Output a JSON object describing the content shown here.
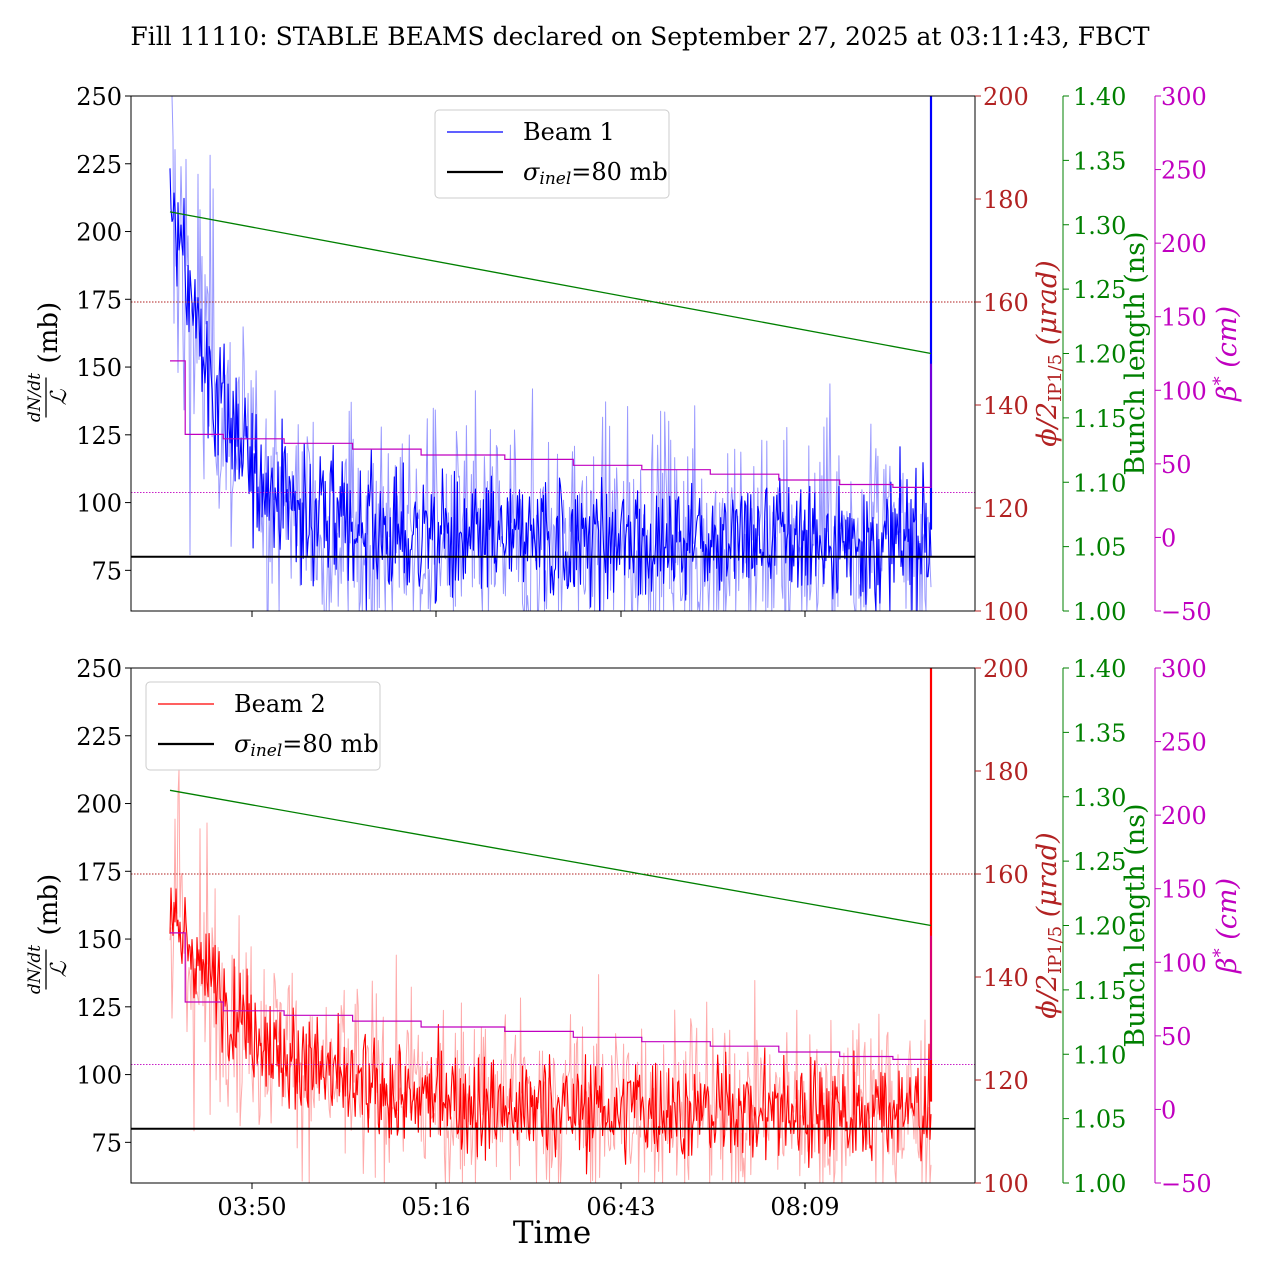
{
  "title": "Fill 11110: STABLE BEAMS declared on September 27, 2025 at 03:11:43, FBCT",
  "xlabel": "Time",
  "x_ticks": [
    "03:50",
    "05:16",
    "06:43",
    "08:09"
  ],
  "colors": {
    "beam1": "#0000ff",
    "beam1_light": "#9999ff",
    "beam2": "#ff0000",
    "beam2_light": "#ffaaaa",
    "crossing": "#b22222",
    "bunch": "#008000",
    "beta": "#c000c0",
    "sigma": "#000000"
  },
  "chart_data": [
    {
      "type": "line",
      "panel": "top",
      "x_ticks": [
        "03:50",
        "05:16",
        "06:43",
        "08:09"
      ],
      "x_tick_labels_visible": false,
      "y_left": {
        "label_num": "dN/dt",
        "label_den": "ℒ",
        "label_unit": "(mb)",
        "ylim": [
          60,
          250
        ],
        "ticks": [
          75,
          100,
          125,
          150,
          175,
          200,
          225,
          250
        ]
      },
      "y_right_crossing": {
        "label_main": "ϕ/2",
        "label_sub": "IP1/5",
        "label_unit": "(μrad)",
        "ylim": [
          100,
          200
        ],
        "ticks": [
          100,
          120,
          140,
          160,
          180,
          200
        ]
      },
      "y_right_bunch": {
        "label": "Bunch length (ns)",
        "ylim": [
          1.0,
          1.4
        ],
        "ticks": [
          "1.00",
          "1.05",
          "1.10",
          "1.15",
          "1.20",
          "1.25",
          "1.30",
          "1.35",
          "1.40"
        ]
      },
      "y_right_beta": {
        "label_main": "β",
        "label_sup": "*",
        "label_unit": "(cm)",
        "ylim": [
          -50,
          300
        ],
        "ticks": [
          -50,
          0,
          50,
          100,
          150,
          200,
          250,
          300
        ]
      },
      "legend": {
        "placement": "upper-center",
        "entries": [
          {
            "label": "Beam 1",
            "color": "#0000ff"
          },
          {
            "label_sym": "σ",
            "label_sub": "inel",
            "label_rest": "=80 mb",
            "color": "#000000"
          }
        ]
      },
      "series": {
        "beam_main": {
          "color": "#0000ff",
          "start_level": 215,
          "decay_tau": 0.35,
          "floor": 86,
          "noise_inner": 17,
          "noise_outer": 32,
          "end_spike": 250
        },
        "sigma_inel": {
          "value": 80
        },
        "crossing_angle": {
          "value": 160
        },
        "crossing_angle_final": {
          "value": 123
        },
        "bunch_length": {
          "start": 1.31,
          "end": 1.2
        },
        "beta_star": {
          "steps_t": [
            0.0,
            0.02,
            0.07,
            0.15,
            0.24,
            0.33,
            0.44,
            0.53,
            0.62,
            0.71,
            0.8,
            0.88,
            0.95
          ],
          "steps_v": [
            120,
            70,
            67,
            64,
            60,
            56,
            53,
            49,
            46,
            43,
            39,
            36,
            34
          ],
          "end_spike": 118
        }
      }
    },
    {
      "type": "line",
      "panel": "bottom",
      "x_ticks": [
        "03:50",
        "05:16",
        "06:43",
        "08:09"
      ],
      "x_tick_labels_visible": true,
      "y_left": {
        "label_num": "dN/dt",
        "label_den": "ℒ",
        "label_unit": "(mb)",
        "ylim": [
          60,
          250
        ],
        "ticks": [
          75,
          100,
          125,
          150,
          175,
          200,
          225,
          250
        ]
      },
      "y_right_crossing": {
        "label_main": "ϕ/2",
        "label_sub": "IP1/5",
        "label_unit": "(μrad)",
        "ylim": [
          100,
          200
        ],
        "ticks": [
          100,
          120,
          140,
          160,
          180,
          200
        ]
      },
      "y_right_bunch": {
        "label": "Bunch length (ns)",
        "ylim": [
          1.0,
          1.4
        ],
        "ticks": [
          "1.00",
          "1.05",
          "1.10",
          "1.15",
          "1.20",
          "1.25",
          "1.30",
          "1.35",
          "1.40"
        ]
      },
      "y_right_beta": {
        "label_main": "β",
        "label_sup": "*",
        "label_unit": "(cm)",
        "ylim": [
          -50,
          300
        ],
        "ticks": [
          -50,
          0,
          50,
          100,
          150,
          200,
          250,
          300
        ]
      },
      "legend": {
        "placement": "upper-left",
        "entries": [
          {
            "label": "Beam 2",
            "color": "#ff0000"
          },
          {
            "label_sym": "σ",
            "label_sub": "inel",
            "label_rest": "=80 mb",
            "color": "#000000"
          }
        ]
      },
      "series": {
        "beam_main": {
          "color": "#ff0000",
          "start_level": 160,
          "decay_tau": 0.6,
          "floor": 87,
          "noise_inner": 14,
          "noise_outer": 26,
          "end_spike": 250
        },
        "sigma_inel": {
          "value": 80
        },
        "crossing_angle": {
          "value": 160
        },
        "crossing_angle_final": {
          "value": 123
        },
        "bunch_length": {
          "start": 1.305,
          "end": 1.2
        },
        "beta_star": {
          "steps_t": [
            0.0,
            0.02,
            0.07,
            0.15,
            0.24,
            0.33,
            0.44,
            0.53,
            0.62,
            0.71,
            0.8,
            0.88,
            0.95
          ],
          "steps_v": [
            120,
            73,
            67,
            64,
            60,
            56,
            53,
            49,
            46,
            43,
            39,
            36,
            34
          ],
          "end_spike": 118
        }
      }
    }
  ]
}
